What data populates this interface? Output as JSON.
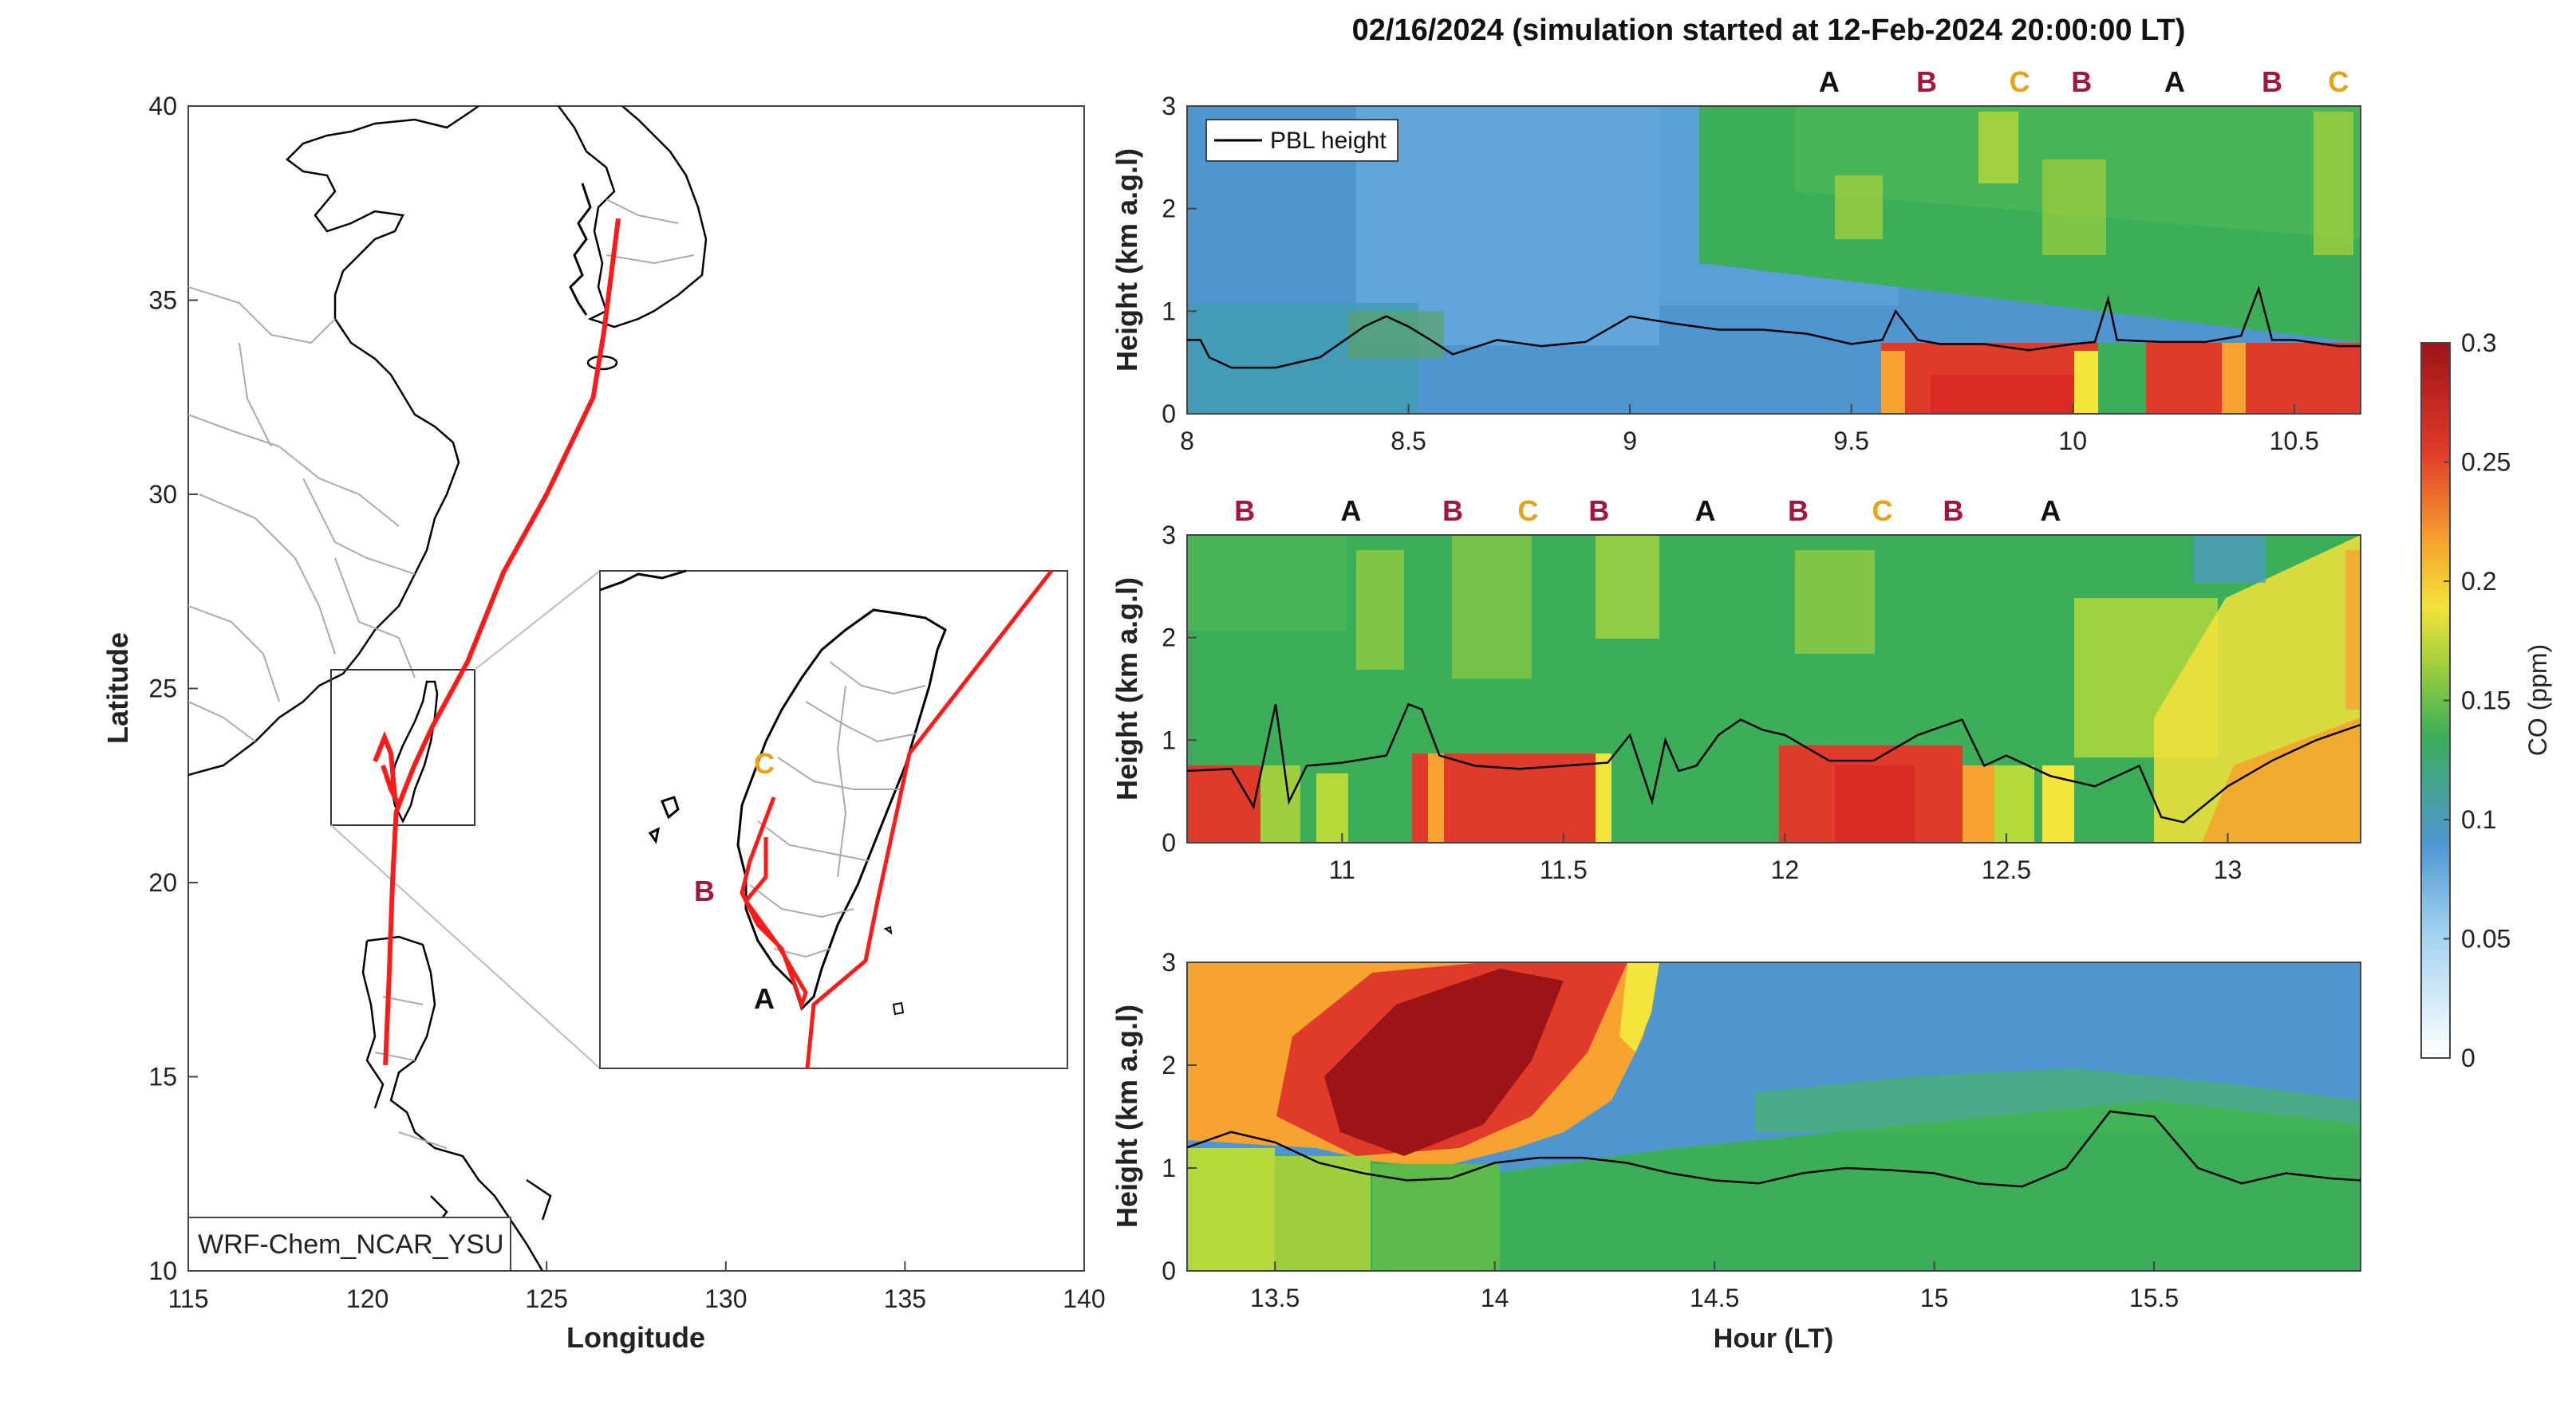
{
  "figure": {
    "title": "02/16/2024 (simulation started at 12-Feb-2024 20:00:00 LT)",
    "xlabel": "Hour (LT)"
  },
  "colors": {
    "trajectory": "#ff1a1a",
    "mark_A": "#111111",
    "mark_B": "#a3163a",
    "mark_C": "#e6a317",
    "pbl_line": "#000000"
  },
  "map": {
    "xlabel": "Longitude",
    "ylabel": "Latitude",
    "xticks": [
      "115",
      "120",
      "125",
      "130",
      "135",
      "140"
    ],
    "yticks": [
      "10",
      "15",
      "20",
      "25",
      "30",
      "35",
      "40"
    ],
    "xlim": [
      115,
      140
    ],
    "ylim": [
      10,
      40
    ],
    "model_label": "WRF-Chem_NCAR_YSU",
    "inset_labels": [
      {
        "text": "C",
        "color": "mark_C"
      },
      {
        "text": "B",
        "color": "mark_B"
      },
      {
        "text": "A",
        "color": "mark_A"
      }
    ],
    "trajectory_lonlat": [
      [
        127.0,
        37.1
      ],
      [
        126.6,
        34.2
      ],
      [
        126.3,
        32.5
      ],
      [
        125.0,
        30.0
      ],
      [
        123.8,
        28.0
      ],
      [
        122.8,
        25.7
      ],
      [
        121.8,
        24.0
      ],
      [
        121.3,
        23.0
      ],
      [
        121.0,
        22.3
      ],
      [
        120.8,
        21.8
      ],
      [
        120.7,
        20.0
      ],
      [
        120.6,
        17.5
      ],
      [
        120.5,
        15.3
      ]
    ]
  },
  "chart_data": [
    {
      "type": "heatmap",
      "panel": 1,
      "ylabel": "Height (km a.g.l)",
      "xlim": [
        8,
        10.65
      ],
      "ylim": [
        0,
        3
      ],
      "xticks": [
        "8",
        "8.5",
        "9",
        "9.5",
        "10",
        "10.5"
      ],
      "yticks": [
        "0",
        "1",
        "2",
        "3"
      ],
      "legend": [
        {
          "label": "PBL height"
        }
      ],
      "legend_placement": "top-left",
      "markers": [
        {
          "label": "A",
          "x": 9.45
        },
        {
          "label": "B",
          "x": 9.67
        },
        {
          "label": "C",
          "x": 9.88
        },
        {
          "label": "B",
          "x": 10.02
        },
        {
          "label": "A",
          "x": 10.23
        },
        {
          "label": "B",
          "x": 10.45
        },
        {
          "label": "C",
          "x": 10.6
        }
      ],
      "pbl_height": {
        "x": [
          8,
          8.03,
          8.05,
          8.1,
          8.2,
          8.3,
          8.35,
          8.4,
          8.45,
          8.5,
          8.55,
          8.6,
          8.65,
          8.7,
          8.8,
          8.9,
          9.0,
          9.1,
          9.2,
          9.3,
          9.4,
          9.5,
          9.57,
          9.6,
          9.65,
          9.7,
          9.8,
          9.9,
          10.0,
          10.05,
          10.08,
          10.1,
          10.2,
          10.3,
          10.38,
          10.42,
          10.45,
          10.5,
          10.6,
          10.65
        ],
        "y": [
          0.72,
          0.72,
          0.55,
          0.45,
          0.45,
          0.55,
          0.7,
          0.85,
          0.95,
          0.85,
          0.72,
          0.58,
          0.65,
          0.72,
          0.66,
          0.7,
          0.95,
          0.88,
          0.82,
          0.82,
          0.78,
          0.68,
          0.72,
          1.0,
          0.72,
          0.68,
          0.68,
          0.62,
          0.68,
          0.7,
          1.12,
          0.72,
          0.7,
          0.7,
          0.76,
          1.22,
          0.72,
          0.72,
          0.66,
          0.66
        ]
      },
      "co_ppm_overview": "low (0.05-0.1) before ~9.4; 0.12-0.17 aloft after 9.4; 0.2-0.27 below PBL after ~9.6"
    },
    {
      "type": "heatmap",
      "panel": 2,
      "ylabel": "Height (km a.g.l)",
      "xlim": [
        10.65,
        13.3
      ],
      "ylim": [
        0,
        3
      ],
      "xticks": [
        "11",
        "11.5",
        "12",
        "12.5",
        "13"
      ],
      "yticks": [
        "0",
        "1",
        "2",
        "3"
      ],
      "markers": [
        {
          "label": "B",
          "x": 10.78
        },
        {
          "label": "A",
          "x": 11.02
        },
        {
          "label": "B",
          "x": 11.25
        },
        {
          "label": "C",
          "x": 11.42
        },
        {
          "label": "B",
          "x": 11.58
        },
        {
          "label": "A",
          "x": 11.82
        },
        {
          "label": "B",
          "x": 12.03
        },
        {
          "label": "C",
          "x": 12.22
        },
        {
          "label": "B",
          "x": 12.38
        },
        {
          "label": "A",
          "x": 12.6
        }
      ],
      "pbl_height": {
        "x": [
          10.65,
          10.75,
          10.8,
          10.85,
          10.88,
          10.92,
          11.0,
          11.1,
          11.15,
          11.18,
          11.22,
          11.3,
          11.4,
          11.5,
          11.6,
          11.65,
          11.7,
          11.73,
          11.76,
          11.8,
          11.85,
          11.9,
          11.95,
          12.0,
          12.1,
          12.2,
          12.3,
          12.4,
          12.45,
          12.5,
          12.6,
          12.7,
          12.8,
          12.85,
          12.9,
          13.0,
          13.1,
          13.2,
          13.3
        ],
        "y": [
          0.7,
          0.72,
          0.35,
          1.35,
          0.4,
          0.75,
          0.78,
          0.85,
          1.35,
          1.3,
          0.85,
          0.75,
          0.72,
          0.75,
          0.78,
          1.05,
          0.4,
          1.0,
          0.7,
          0.75,
          1.05,
          1.2,
          1.1,
          1.05,
          0.8,
          0.8,
          1.05,
          1.2,
          0.75,
          0.85,
          0.65,
          0.55,
          0.75,
          0.25,
          0.2,
          0.55,
          0.8,
          1.0,
          1.15
        ]
      },
      "co_ppm_overview": "0.12-0.16 aloft; 0.2-0.27 near surface; 0.18-0.22 after ~12.8"
    },
    {
      "type": "heatmap",
      "panel": 3,
      "ylabel": "Height (km a.g.l)",
      "xlim": [
        13.3,
        15.97
      ],
      "ylim": [
        0,
        3
      ],
      "xticks": [
        "13.5",
        "14",
        "14.5",
        "15",
        "15.5"
      ],
      "yticks": [
        "0",
        "1",
        "2",
        "3"
      ],
      "pbl_height": {
        "x": [
          13.3,
          13.4,
          13.5,
          13.6,
          13.7,
          13.8,
          13.9,
          14.0,
          14.1,
          14.2,
          14.3,
          14.4,
          14.5,
          14.6,
          14.7,
          14.8,
          14.9,
          15.0,
          15.1,
          15.2,
          15.3,
          15.4,
          15.5,
          15.6,
          15.7,
          15.8,
          15.9,
          15.97
        ],
        "y": [
          1.2,
          1.35,
          1.25,
          1.05,
          0.95,
          0.88,
          0.9,
          1.05,
          1.1,
          1.1,
          1.05,
          0.95,
          0.88,
          0.85,
          0.95,
          1.0,
          0.98,
          0.95,
          0.85,
          0.82,
          1.0,
          1.55,
          1.5,
          1.0,
          0.85,
          0.95,
          0.9,
          0.88
        ]
      },
      "co_ppm_overview": "0.2-0.3 plume above PBL 13.5-14.4; 0.05-0.1 aloft after 14.4; 0.12-0.15 below ~1 km"
    }
  ],
  "colorbar": {
    "label": "CO (ppm)",
    "ticks": [
      "0",
      "0.05",
      "0.1",
      "0.15",
      "0.2",
      "0.25",
      "0.3"
    ],
    "range": [
      0,
      0.3
    ]
  }
}
